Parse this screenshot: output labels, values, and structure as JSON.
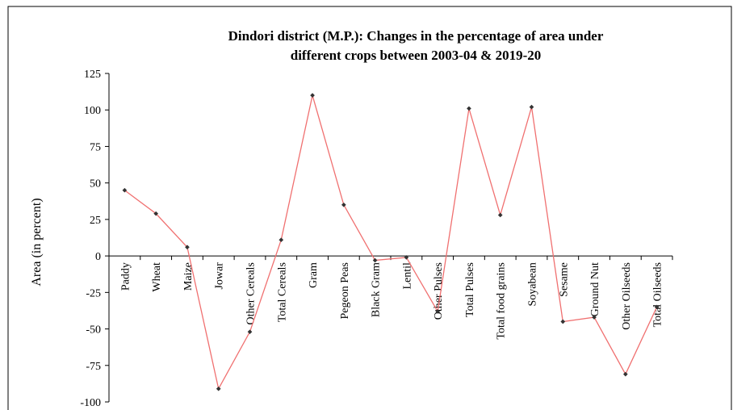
{
  "chart_data": {
    "type": "line",
    "title": [
      "Dindori district (M.P.):  Changes in the percentage of area under",
      "different crops between 2003-04 & 2019-20"
    ],
    "y_label": "Area (in percent)",
    "categories": [
      "Paddy",
      "Wheat",
      "Maize",
      "Jowar",
      "Other Cereals",
      "Total Cereals",
      "Gram",
      "Pegeon Peas",
      "Black Gram",
      "Lentil",
      "Other Pulses",
      "Total Pulses",
      "Total food grains",
      "Soyabean",
      "Sesame",
      "Ground Nut",
      "Other Oilseeds",
      "Total Oilseeds"
    ],
    "series": [
      {
        "name": "Area",
        "color": "#f07070",
        "marker_color": "#333333",
        "values": [
          45,
          29,
          6,
          -91,
          -52,
          11,
          110,
          35,
          -3,
          -1,
          -38,
          101,
          28,
          102,
          -45,
          -42,
          -81,
          -35
        ]
      }
    ],
    "ylim": [
      -100,
      125
    ],
    "yticks": [
      -100,
      -75,
      -50,
      -25,
      0,
      25,
      50,
      75,
      100,
      125
    ]
  }
}
